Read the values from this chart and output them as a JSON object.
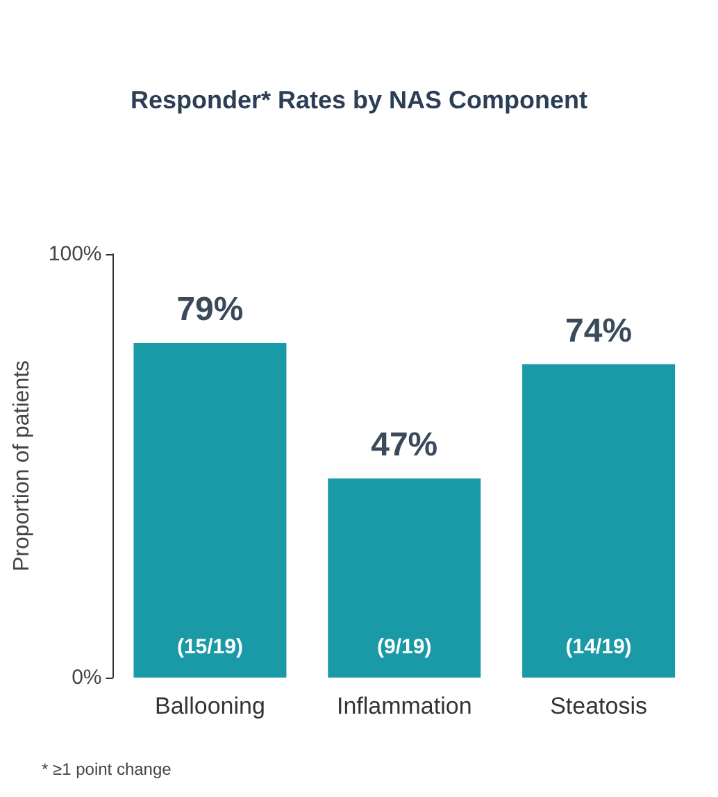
{
  "chart_data": {
    "type": "bar",
    "title": "Responder* Rates by NAS Component",
    "ylabel": "Proportion of patients",
    "categories": [
      "Ballooning",
      "Inflammation",
      "Steatosis"
    ],
    "values": [
      79,
      47,
      74
    ],
    "value_labels": [
      "79%",
      "47%",
      "74%"
    ],
    "color": "#1a9aa6",
    "ylim": [
      0,
      100
    ],
    "yticks": [
      {
        "value": 0,
        "label": "0%"
      },
      {
        "value": 100,
        "label": "100%"
      }
    ],
    "grid": false,
    "annotations": [
      "(15/19)",
      "(9/19)",
      "(14/19)",
      "* ≥1 point change"
    ]
  }
}
